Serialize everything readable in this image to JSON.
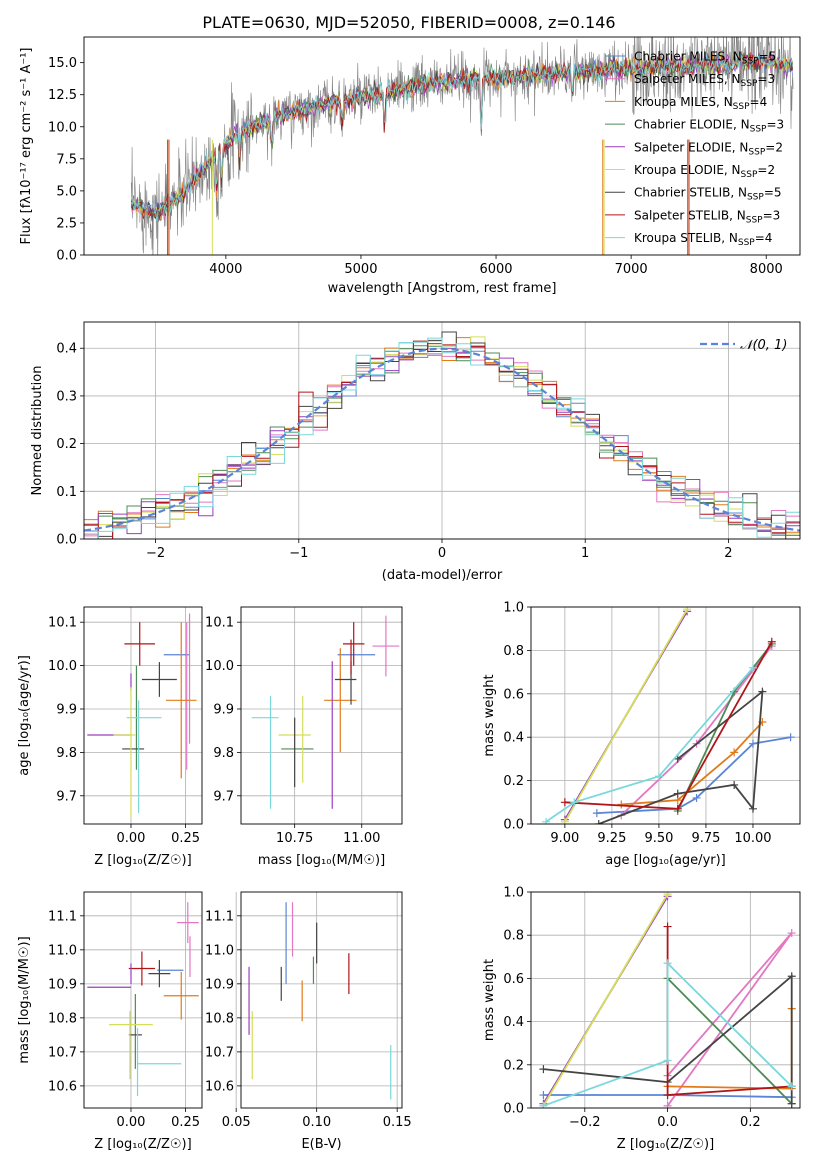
{
  "colors": {
    "Chabrier MILES": "#5B84D6",
    "Salpeter MILES": "#E377C2",
    "Kroupa MILES": "#E07B1A",
    "Chabrier ELODIE": "#4D8B55",
    "Salpeter ELODIE": "#9B3DBF",
    "Kroupa ELODIE": "#D4DE5A",
    "Chabrier STELIB": "#444444",
    "Salpeter STELIB": "#B0151A",
    "Kroupa STELIB": "#7AD8DC"
  },
  "chart_data": [
    {
      "id": "spectrum",
      "type": "line",
      "title": "PLATE=0630, MJD=52050, FIBERID=0008, z=0.146",
      "xlabel": "wavelength [Angstrom, rest frame]",
      "ylabel": "Flux [fλ10⁻¹⁷ erg cm⁻² s⁻¹ A⁻¹]",
      "xlim": [
        2950,
        8250
      ],
      "ylim": [
        0,
        17
      ],
      "xticks": [
        4000,
        5000,
        6000,
        7000,
        8000
      ],
      "yticks": [
        0.0,
        2.5,
        5.0,
        7.5,
        10.0,
        12.5,
        15.0
      ],
      "data_wavelength_range": [
        3300,
        8200
      ],
      "continuum_knots": [
        [
          3300,
          3.9
        ],
        [
          3500,
          3.3
        ],
        [
          3700,
          5.0
        ],
        [
          3950,
          8.2
        ],
        [
          4100,
          9.6
        ],
        [
          4400,
          10.9
        ],
        [
          4800,
          11.9
        ],
        [
          5200,
          12.7
        ],
        [
          5600,
          13.5
        ],
        [
          6000,
          13.8
        ],
        [
          6500,
          14.2
        ],
        [
          7000,
          14.6
        ],
        [
          7500,
          14.8
        ],
        [
          8000,
          15.1
        ],
        [
          8200,
          14.6
        ]
      ],
      "grid": false,
      "legend_position": "top-right",
      "legend": [
        "Chabrier MILES, N_SSP=5",
        "Salpeter MILES, N_SSP=3",
        "Kroupa MILES, N_SSP=4",
        "Chabrier ELODIE, N_SSP=3",
        "Salpeter ELODIE, N_SSP=2",
        "Kroupa ELODIE, N_SSP=2",
        "Chabrier STELIB, N_SSP=5",
        "Salpeter STELIB, N_SSP=3",
        "Kroupa STELIB, N_SSP=4"
      ],
      "legend_labels": [
        {
          "name": "Chabrier MILES, N",
          "sub": "SSP",
          "val": "=5"
        },
        {
          "name": "Salpeter MILES, N",
          "sub": "SSP",
          "val": "=3"
        },
        {
          "name": "Kroupa MILES, N",
          "sub": "SSP",
          "val": "=4"
        },
        {
          "name": "Chabrier ELODIE, N",
          "sub": "SSP",
          "val": "=3"
        },
        {
          "name": "Salpeter ELODIE, N",
          "sub": "SSP",
          "val": "=2"
        },
        {
          "name": "Kroupa ELODIE, N",
          "sub": "SSP",
          "val": "=2"
        },
        {
          "name": "Chabrier STELIB, N",
          "sub": "SSP",
          "val": "=5"
        },
        {
          "name": "Salpeter STELIB, N",
          "sub": "SSP",
          "val": "=3"
        },
        {
          "name": "Kroupa STELIB, N",
          "sub": "SSP",
          "val": "=4"
        }
      ]
    },
    {
      "id": "residuals",
      "type": "line",
      "xlabel": "(data-model)/error",
      "ylabel": "Normed distribution",
      "xlim": [
        -2.5,
        2.5
      ],
      "ylim": [
        0,
        0.455
      ],
      "xticks": [
        -2,
        -1,
        0,
        1,
        2
      ],
      "yticks": [
        0.0,
        0.1,
        0.2,
        0.3,
        0.4
      ],
      "grid": true,
      "legend_position": "top-right",
      "legend_label": "𝒩(0, 1)",
      "curve": {
        "name": "𝒩(0, 1)",
        "mu": 0,
        "sigma": 1,
        "color": "#5B84D6"
      },
      "histogram": {
        "bin_width": 0.1,
        "range": [
          -2.5,
          2.5
        ],
        "note_series_follow_normal_with_scatter": true
      }
    },
    {
      "id": "age_vs_Z",
      "type": "scatter",
      "xlabel": "Z [log₁₀(Z/Z☉)]",
      "ylabel": "age  [log₁₀(age/yr)]",
      "xlim": [
        -0.215,
        0.325
      ],
      "ylim": [
        9.635,
        10.135
      ],
      "xticks": [
        0.0,
        0.25
      ],
      "yticks": [
        9.7,
        9.8,
        9.9,
        10.0,
        10.1
      ],
      "grid": true,
      "points": [
        {
          "series": "Chabrier MILES",
          "x": 0.21,
          "y": 10.025,
          "xerr": 0.06,
          "yerr": 0.0
        },
        {
          "series": "Salpeter MILES",
          "x": 0.255,
          "y": 9.93,
          "xerr": 0.0,
          "yerr": 0.17
        },
        {
          "series": "Kroupa MILES",
          "x": 0.23,
          "y": 9.92,
          "xerr": 0.07,
          "yerr": 0.18
        },
        {
          "series": "Chabrier ELODIE",
          "x": 0.025,
          "y": 9.88,
          "xerr": 0.0,
          "yerr": 0.12
        },
        {
          "series": "Salpeter ELODIE",
          "x": -0.1,
          "y": 9.84,
          "xerr": 0.1,
          "yerr": 0.0
        },
        {
          "series": "Kroupa ELODIE",
          "x": -0.03,
          "y": 9.84,
          "xerr": 0.05,
          "yerr": 0.0
        },
        {
          "series": "Chabrier STELIB",
          "x": 0.13,
          "y": 9.968,
          "xerr": 0.08,
          "yerr": 0.04
        },
        {
          "series": "Salpeter STELIB",
          "x": 0.04,
          "y": 10.05,
          "xerr": 0.07,
          "yerr": 0.05
        },
        {
          "series": "Kroupa STELIB",
          "x": 0.06,
          "y": 9.88,
          "xerr": 0.08,
          "yerr": 0.0
        },
        {
          "series": "Chabrier STELIB",
          "x": 0.01,
          "y": 9.808,
          "xerr": 0.05,
          "yerr": 0.0
        },
        {
          "series": "Salpeter ELODIE",
          "x": 0.0,
          "y": 9.962,
          "xerr": 0.0,
          "yerr": 0.02
        },
        {
          "series": "Kroupa ELODIE",
          "x": 0.0,
          "y": 9.8,
          "xerr": 0.0,
          "yerr": 0.15
        },
        {
          "series": "Kroupa STELIB",
          "x": 0.035,
          "y": 9.79,
          "xerr": 0.0,
          "yerr": 0.13
        },
        {
          "series": "Salpeter MILES",
          "x": 0.268,
          "y": 9.97,
          "xerr": 0.0,
          "yerr": 0.15
        }
      ]
    },
    {
      "id": "age_vs_mass",
      "type": "scatter",
      "xlabel": "mass [log₁₀(M/M☉)]",
      "ylabel": "",
      "xlim": [
        10.55,
        11.15
      ],
      "ylim": [
        9.635,
        10.135
      ],
      "xticks": [
        10.75,
        11.0
      ],
      "yticks": [
        9.7,
        9.8,
        9.9,
        10.0,
        10.1
      ],
      "grid": true,
      "points": [
        {
          "series": "Chabrier MILES",
          "x": 10.98,
          "y": 10.025,
          "xerr": 0.07,
          "yerr": 0.0
        },
        {
          "series": "Salpeter MILES",
          "x": 11.09,
          "y": 10.045,
          "xerr": 0.05,
          "yerr": 0.07
        },
        {
          "series": "Kroupa MILES",
          "x": 10.92,
          "y": 9.92,
          "xerr": 0.06,
          "yerr": 0.12
        },
        {
          "series": "Chabrier ELODIE",
          "x": 10.76,
          "y": 9.808,
          "xerr": 0.06,
          "yerr": 0.0
        },
        {
          "series": "Salpeter ELODIE",
          "x": 10.89,
          "y": 9.84,
          "xerr": 0.0,
          "yerr": 0.17
        },
        {
          "series": "Kroupa ELODIE",
          "x": 10.75,
          "y": 9.84,
          "xerr": 0.06,
          "yerr": 0.0
        },
        {
          "series": "Chabrier STELIB",
          "x": 10.94,
          "y": 9.968,
          "xerr": 0.04,
          "yerr": 0.0
        },
        {
          "series": "Salpeter STELIB",
          "x": 10.97,
          "y": 10.05,
          "xerr": 0.04,
          "yerr": 0.05
        },
        {
          "series": "Kroupa STELIB",
          "x": 10.64,
          "y": 9.88,
          "xerr": 0.05,
          "yerr": 0.0
        },
        {
          "series": "Chabrier STELIB",
          "x": 10.75,
          "y": 9.8,
          "xerr": 0.0,
          "yerr": 0.08
        },
        {
          "series": "Kroupa ELODIE",
          "x": 10.78,
          "y": 9.83,
          "xerr": 0.0,
          "yerr": 0.1
        },
        {
          "series": "Kroupa STELIB",
          "x": 10.66,
          "y": 9.8,
          "xerr": 0.0,
          "yerr": 0.13
        },
        {
          "series": "Chabrier STELIB",
          "x": 10.96,
          "y": 9.96,
          "xerr": 0.0,
          "yerr": 0.05
        },
        {
          "series": "Salpeter STELIB",
          "x": 10.96,
          "y": 10.02,
          "xerr": 0.0,
          "yerr": 0.04
        }
      ]
    },
    {
      "id": "weight_vs_age",
      "type": "line",
      "xlabel": "age  [log₁₀(age/yr)]",
      "ylabel": "mass weight",
      "xlim": [
        8.82,
        10.25
      ],
      "ylim": [
        0,
        1.0
      ],
      "xticks": [
        9.0,
        9.25,
        9.5,
        9.75,
        10.0
      ],
      "yticks": [
        0.0,
        0.2,
        0.4,
        0.6,
        0.8,
        1.0
      ],
      "grid": true,
      "series": [
        {
          "name": "Chabrier MILES",
          "x": [
            9.17,
            9.6,
            9.7,
            10.0,
            10.2
          ],
          "y": [
            0.05,
            0.07,
            0.12,
            0.37,
            0.4
          ]
        },
        {
          "name": "Salpeter MILES",
          "x": [
            9.3,
            9.7,
            10.1
          ],
          "y": [
            0.04,
            0.37,
            0.82
          ]
        },
        {
          "name": "Kroupa MILES",
          "x": [
            9.3,
            9.6,
            9.9,
            10.05
          ],
          "y": [
            0.09,
            0.11,
            0.33,
            0.47
          ]
        },
        {
          "name": "Chabrier ELODIE",
          "x": [
            9.6,
            9.9,
            10.1
          ],
          "y": [
            0.06,
            0.61,
            0.83
          ]
        },
        {
          "name": "Salpeter ELODIE",
          "x": [
            9.0,
            9.65
          ],
          "y": [
            0.02,
            0.98
          ]
        },
        {
          "name": "Kroupa ELODIE",
          "x": [
            9.0,
            9.65
          ],
          "y": [
            0.01,
            0.99
          ]
        },
        {
          "name": "Chabrier STELIB",
          "x": [
            9.18,
            9.6,
            9.9,
            10.0,
            10.05,
            9.6
          ],
          "y": [
            0.0,
            0.14,
            0.18,
            0.07,
            0.61,
            0.3
          ]
        },
        {
          "name": "Salpeter STELIB",
          "x": [
            9.0,
            9.6,
            10.1
          ],
          "y": [
            0.1,
            0.07,
            0.84
          ]
        },
        {
          "name": "Kroupa STELIB",
          "x": [
            8.9,
            9.05,
            9.5,
            10.0
          ],
          "y": [
            0.01,
            0.1,
            0.22,
            0.72
          ]
        }
      ]
    },
    {
      "id": "mass_vs_Z",
      "type": "scatter",
      "xlabel": "Z [log₁₀(Z/Z☉)]",
      "ylabel": "mass [log₁₀(M/M☉)]",
      "xlim": [
        -0.215,
        0.325
      ],
      "ylim": [
        10.535,
        11.17
      ],
      "xticks": [
        0.0,
        0.25
      ],
      "yticks": [
        10.6,
        10.7,
        10.8,
        10.9,
        11.0,
        11.1
      ],
      "grid": true,
      "points": [
        {
          "series": "Chabrier MILES",
          "x": 0.18,
          "y": 10.94,
          "xerr": 0.06,
          "yerr": 0.0
        },
        {
          "series": "Salpeter MILES",
          "x": 0.26,
          "y": 11.08,
          "xerr": 0.05,
          "yerr": 0.06
        },
        {
          "series": "Kroupa MILES",
          "x": 0.23,
          "y": 10.865,
          "xerr": 0.08,
          "yerr": 0.07
        },
        {
          "series": "Chabrier ELODIE",
          "x": 0.02,
          "y": 10.76,
          "xerr": 0.0,
          "yerr": 0.11
        },
        {
          "series": "Salpeter ELODIE",
          "x": -0.1,
          "y": 10.89,
          "xerr": 0.1,
          "yerr": 0.0
        },
        {
          "series": "Kroupa ELODIE",
          "x": 0.0,
          "y": 10.78,
          "xerr": 0.1,
          "yerr": 0.0
        },
        {
          "series": "Chabrier STELIB",
          "x": 0.13,
          "y": 10.93,
          "xerr": 0.05,
          "yerr": 0.04
        },
        {
          "series": "Salpeter STELIB",
          "x": 0.05,
          "y": 10.945,
          "xerr": 0.06,
          "yerr": 0.05
        },
        {
          "series": "Kroupa STELIB",
          "x": 0.13,
          "y": 10.665,
          "xerr": 0.1,
          "yerr": 0.0
        },
        {
          "series": "Chabrier STELIB",
          "x": 0.02,
          "y": 10.75,
          "xerr": 0.03,
          "yerr": 0.0
        },
        {
          "series": "Salpeter ELODIE",
          "x": 0.0,
          "y": 10.93,
          "xerr": 0.0,
          "yerr": 0.03
        },
        {
          "series": "Kroupa ELODIE",
          "x": -0.005,
          "y": 10.72,
          "xerr": 0.0,
          "yerr": 0.1
        },
        {
          "series": "Kroupa STELIB",
          "x": 0.03,
          "y": 10.67,
          "xerr": 0.0,
          "yerr": 0.1
        },
        {
          "series": "Salpeter MILES",
          "x": 0.27,
          "y": 10.98,
          "xerr": 0.0,
          "yerr": 0.06
        }
      ]
    },
    {
      "id": "mass_vs_ebv",
      "type": "scatter",
      "xlabel": "E(B-V)",
      "ylabel": "",
      "xlim": [
        0.053,
        0.153
      ],
      "ylim": [
        10.535,
        11.17
      ],
      "xticks": [
        0.05,
        0.1,
        0.15
      ],
      "yticks": [
        10.6,
        10.7,
        10.8,
        10.9,
        11.0,
        11.1
      ],
      "grid": true,
      "points": [
        {
          "series": "Chabrier MILES",
          "x": 0.081,
          "y": 11.02,
          "xerr": 0.0,
          "yerr": 0.12
        },
        {
          "series": "Salpeter MILES",
          "x": 0.085,
          "y": 11.06,
          "xerr": 0.0,
          "yerr": 0.08
        },
        {
          "series": "Kroupa MILES",
          "x": 0.091,
          "y": 10.85,
          "xerr": 0.0,
          "yerr": 0.06
        },
        {
          "series": "Chabrier ELODIE",
          "x": 0.098,
          "y": 10.94,
          "xerr": 0.0,
          "yerr": 0.04
        },
        {
          "series": "Salpeter ELODIE",
          "x": 0.058,
          "y": 10.85,
          "xerr": 0.0,
          "yerr": 0.1
        },
        {
          "series": "Kroupa ELODIE",
          "x": 0.06,
          "y": 10.72,
          "xerr": 0.0,
          "yerr": 0.1
        },
        {
          "series": "Chabrier STELIB",
          "x": 0.078,
          "y": 10.9,
          "xerr": 0.0,
          "yerr": 0.05
        },
        {
          "series": "Salpeter STELIB",
          "x": 0.12,
          "y": 10.93,
          "xerr": 0.0,
          "yerr": 0.06
        },
        {
          "series": "Kroupa STELIB",
          "x": 0.146,
          "y": 10.64,
          "xerr": 0.0,
          "yerr": 0.08
        },
        {
          "series": "Chabrier STELIB",
          "x": 0.1,
          "y": 11.02,
          "xerr": 0.0,
          "yerr": 0.06
        }
      ]
    },
    {
      "id": "weight_vs_Z",
      "type": "line",
      "xlabel": "Z [log₁₀(Z/Z☉)]",
      "ylabel": "mass weight",
      "xlim": [
        -0.33,
        0.32
      ],
      "ylim": [
        0,
        1.0
      ],
      "xticks": [
        -0.2,
        0.0,
        0.2
      ],
      "yticks": [
        0.0,
        0.2,
        0.4,
        0.6,
        0.8,
        1.0
      ],
      "grid": true,
      "series": [
        {
          "name": "Chabrier MILES",
          "x": [
            -0.3,
            0.0,
            0.3
          ],
          "y": [
            0.06,
            0.06,
            0.05
          ]
        },
        {
          "name": "Salpeter MILES",
          "x": [
            0.0,
            0.3,
            0.0
          ],
          "y": [
            0.15,
            0.81,
            0.01
          ]
        },
        {
          "name": "Kroupa MILES",
          "x": [
            0.0,
            0.3,
            0.3
          ],
          "y": [
            0.1,
            0.09,
            0.46
          ]
        },
        {
          "name": "Chabrier ELODIE",
          "x": [
            0.0,
            0.3
          ],
          "y": [
            0.6,
            0.02
          ]
        },
        {
          "name": "Salpeter ELODIE",
          "x": [
            -0.3,
            0.0
          ],
          "y": [
            0.02,
            0.98
          ]
        },
        {
          "name": "Kroupa ELODIE",
          "x": [
            -0.3,
            0.0
          ],
          "y": [
            0.01,
            0.99
          ]
        },
        {
          "name": "Chabrier STELIB",
          "x": [
            -0.3,
            0.0,
            0.3,
            0.3
          ],
          "y": [
            0.18,
            0.12,
            0.61,
            0.02
          ]
        },
        {
          "name": "Salpeter STELIB",
          "x": [
            0.0,
            0.0,
            0.3
          ],
          "y": [
            0.84,
            0.06,
            0.1
          ]
        },
        {
          "name": "Kroupa STELIB",
          "x": [
            -0.3,
            0.0,
            0.0,
            0.3
          ],
          "y": [
            0.01,
            0.22,
            0.67,
            0.1
          ]
        }
      ]
    }
  ]
}
